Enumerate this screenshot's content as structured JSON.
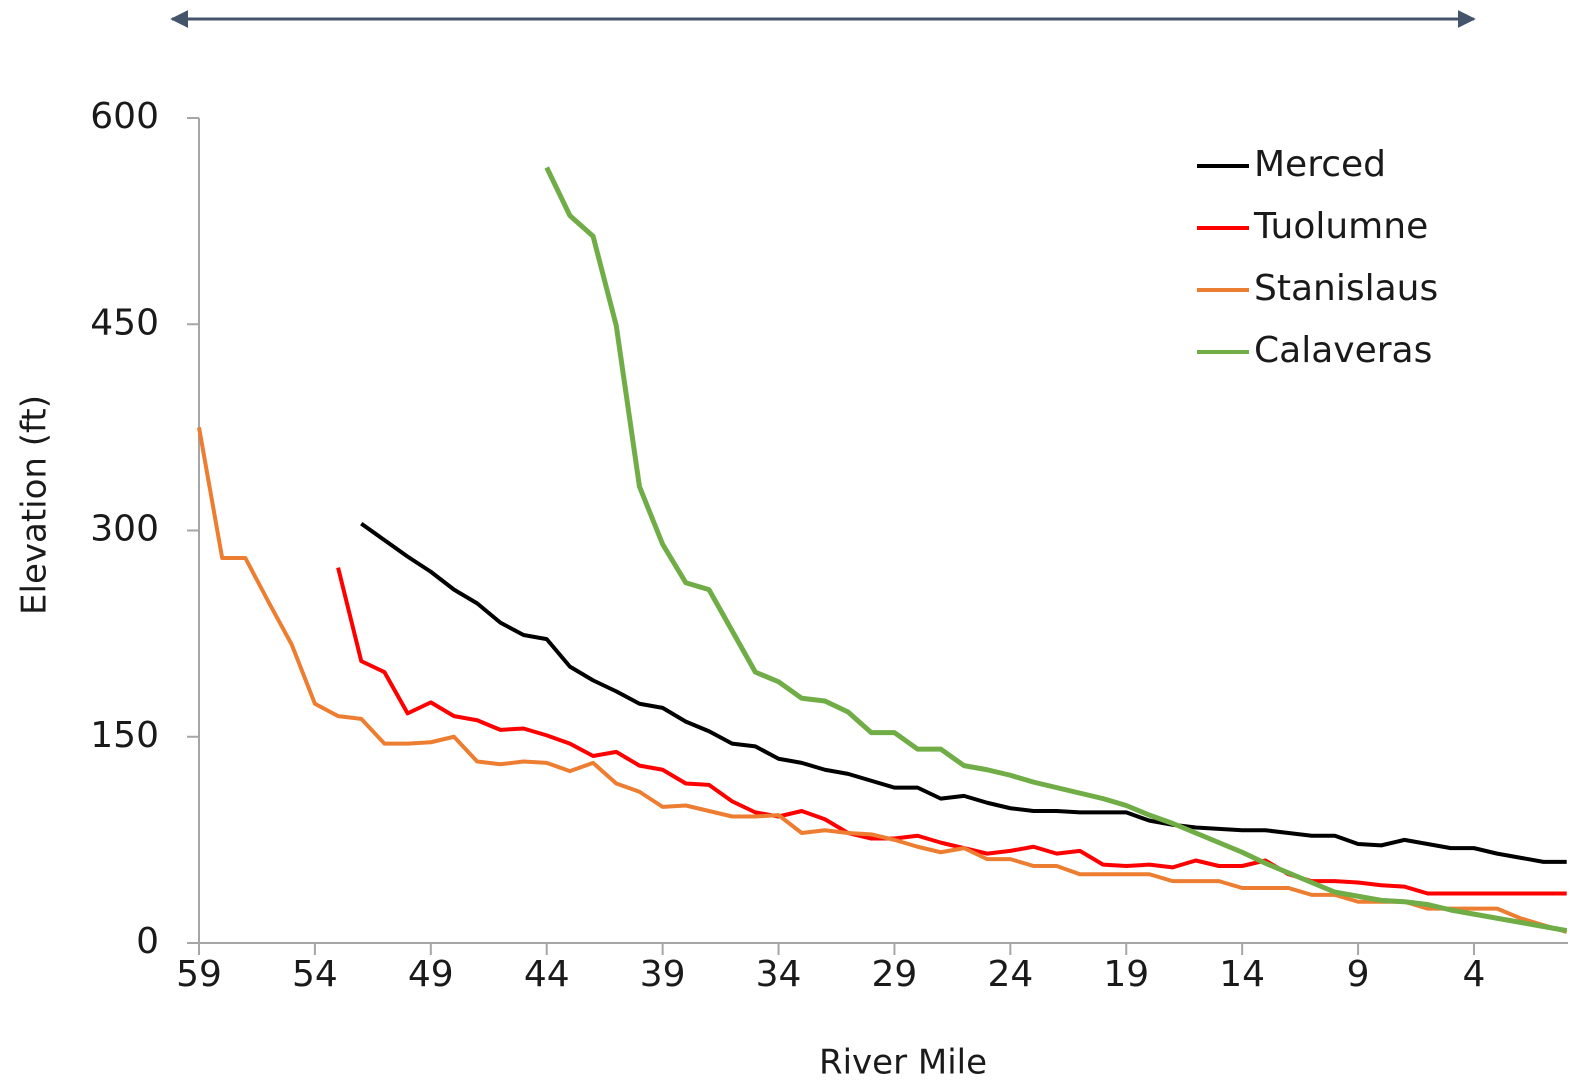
{
  "chart_data": {
    "type": "line",
    "x_label": "River Mile",
    "y_label": "Elevation (ft)",
    "x": [
      59,
      58,
      57,
      56,
      55,
      54,
      53,
      52,
      51,
      50,
      49,
      48,
      47,
      46,
      45,
      44,
      43,
      42,
      41,
      40,
      39,
      38,
      37,
      36,
      35,
      34,
      33,
      32,
      31,
      30,
      29,
      28,
      27,
      26,
      25,
      24,
      23,
      22,
      21,
      20,
      19,
      18,
      17,
      16,
      15,
      14,
      13,
      12,
      11,
      10,
      9,
      8,
      7,
      6,
      5,
      4,
      3,
      2,
      1,
      0
    ],
    "xlim": [
      59,
      0
    ],
    "xticks": [
      59,
      54,
      49,
      44,
      39,
      34,
      29,
      24,
      19,
      14,
      9,
      4
    ],
    "ylim": [
      0,
      600
    ],
    "yticks": [
      0,
      150,
      300,
      450,
      600
    ],
    "grid": false,
    "legend": "top-right",
    "series": [
      {
        "name": "Merced",
        "color": "#000000",
        "values": [
          null,
          null,
          null,
          null,
          null,
          null,
          null,
          305,
          293,
          281,
          270,
          257,
          247,
          233,
          224,
          221,
          201,
          191,
          183,
          174,
          171,
          161,
          154,
          145,
          143,
          134,
          131,
          126,
          123,
          118,
          113,
          113,
          105,
          107,
          102,
          98,
          96,
          96,
          95,
          95,
          95,
          89,
          86,
          84,
          83,
          82,
          82,
          80,
          78,
          78,
          72,
          71,
          75,
          72,
          69,
          69,
          65,
          62,
          59,
          59
        ]
      },
      {
        "name": "Tuolumne",
        "color": "#ff0000",
        "values": [
          null,
          null,
          null,
          null,
          null,
          null,
          273,
          205,
          197,
          167,
          175,
          165,
          162,
          155,
          156,
          151,
          145,
          136,
          139,
          129,
          126,
          116,
          115,
          103,
          95,
          92,
          96,
          90,
          80,
          76,
          76,
          78,
          73,
          69,
          65,
          67,
          70,
          65,
          67,
          57,
          56,
          57,
          55,
          60,
          56,
          56,
          60,
          50,
          45,
          45,
          44,
          42,
          41,
          36,
          36,
          36,
          36,
          36,
          36,
          36
        ]
      },
      {
        "name": "Stanislaus",
        "color": "#ed7d31",
        "values": [
          375,
          280,
          280,
          248,
          217,
          174,
          165,
          163,
          145,
          145,
          146,
          150,
          132,
          130,
          132,
          131,
          125,
          131,
          116,
          110,
          99,
          100,
          96,
          92,
          92,
          93,
          80,
          82,
          80,
          79,
          75,
          70,
          66,
          69,
          61,
          61,
          56,
          56,
          50,
          50,
          50,
          50,
          45,
          45,
          45,
          40,
          40,
          40,
          35,
          35,
          30,
          30,
          30,
          25,
          25,
          25,
          25,
          18,
          13,
          8
        ]
      },
      {
        "name": "Calaveras",
        "color": "#70ad47",
        "values": [
          null,
          null,
          null,
          null,
          null,
          null,
          null,
          null,
          null,
          null,
          null,
          null,
          null,
          null,
          null,
          564,
          529,
          514,
          449,
          332,
          290,
          262,
          257,
          227,
          197,
          190,
          178,
          176,
          168,
          153,
          153,
          141,
          141,
          129,
          126,
          122,
          117,
          113,
          109,
          105,
          100,
          93,
          87,
          80,
          73,
          66,
          58,
          51,
          44,
          37,
          34,
          31,
          30,
          28,
          24,
          21,
          18,
          15,
          12,
          9
        ]
      }
    ]
  }
}
